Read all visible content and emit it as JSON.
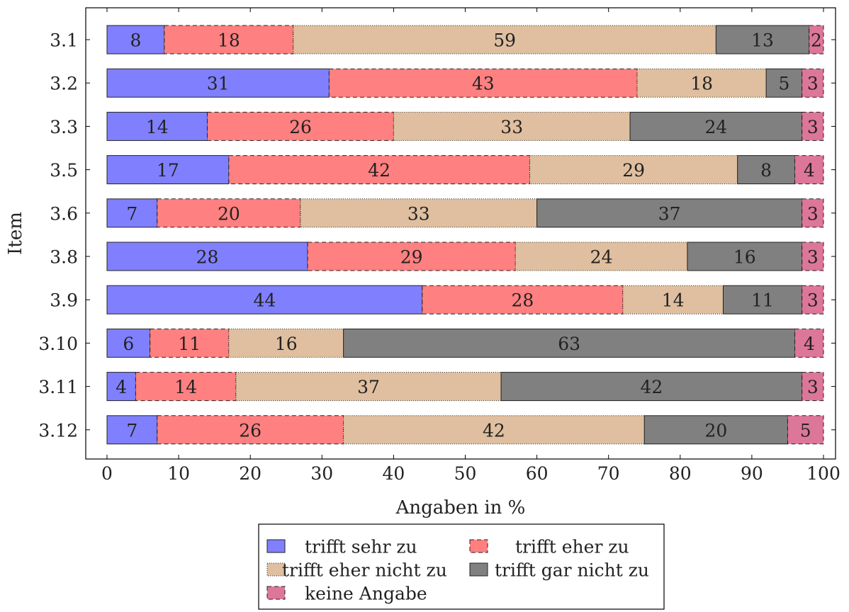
{
  "chart_data": {
    "type": "bar",
    "orientation": "horizontal",
    "stacked": true,
    "xlabel": "Angaben in %",
    "ylabel": "Item",
    "xlim": [
      0,
      100
    ],
    "xticks": [
      0,
      10,
      20,
      30,
      40,
      50,
      60,
      70,
      80,
      90,
      100
    ],
    "grid": false,
    "legend_position": "bottom",
    "categories": [
      "3.1",
      "3.2",
      "3.3",
      "3.5",
      "3.6",
      "3.8",
      "3.9",
      "3.10",
      "3.11",
      "3.12"
    ],
    "series": [
      {
        "name": "trifft sehr zu",
        "color": "#8080ff",
        "values": [
          8,
          31,
          14,
          17,
          7,
          28,
          44,
          6,
          4,
          7
        ]
      },
      {
        "name": "trifft eher zu",
        "color": "#ff8080",
        "values": [
          18,
          43,
          26,
          42,
          20,
          29,
          28,
          11,
          14,
          26
        ]
      },
      {
        "name": "trifft eher nicht zu",
        "color": "#dfbf9f",
        "values": [
          59,
          18,
          33,
          29,
          33,
          24,
          14,
          16,
          37,
          42
        ]
      },
      {
        "name": "trifft gar nicht zu",
        "color": "#808080",
        "values": [
          13,
          5,
          24,
          8,
          37,
          16,
          11,
          63,
          42,
          20
        ]
      },
      {
        "name": "keine Angabe",
        "color": "#dd7799",
        "values": [
          2,
          3,
          3,
          4,
          3,
          3,
          3,
          4,
          3,
          5
        ]
      }
    ]
  }
}
